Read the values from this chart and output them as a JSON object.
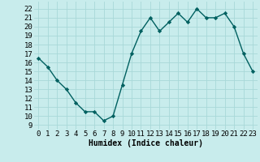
{
  "x": [
    0,
    1,
    2,
    3,
    4,
    5,
    6,
    7,
    8,
    9,
    10,
    11,
    12,
    13,
    14,
    15,
    16,
    17,
    18,
    19,
    20,
    21,
    22,
    23
  ],
  "y": [
    16.5,
    15.5,
    14.0,
    13.0,
    11.5,
    10.5,
    10.5,
    9.5,
    10.0,
    13.5,
    17.0,
    19.5,
    21.0,
    19.5,
    20.5,
    21.5,
    20.5,
    22.0,
    21.0,
    21.0,
    21.5,
    20.0,
    17.0,
    15.0
  ],
  "line_color": "#006060",
  "marker": "D",
  "marker_size": 2.2,
  "linewidth": 1.0,
  "bg_color": "#c8ecec",
  "grid_color": "#a8d8d8",
  "xlabel": "Humidex (Indice chaleur)",
  "xlabel_fontsize": 7,
  "ylabel_ticks": [
    9,
    10,
    11,
    12,
    13,
    14,
    15,
    16,
    17,
    18,
    19,
    20,
    21,
    22
  ],
  "ylim": [
    8.5,
    22.8
  ],
  "xlim": [
    -0.5,
    23.5
  ],
  "tick_fontsize": 6.5
}
